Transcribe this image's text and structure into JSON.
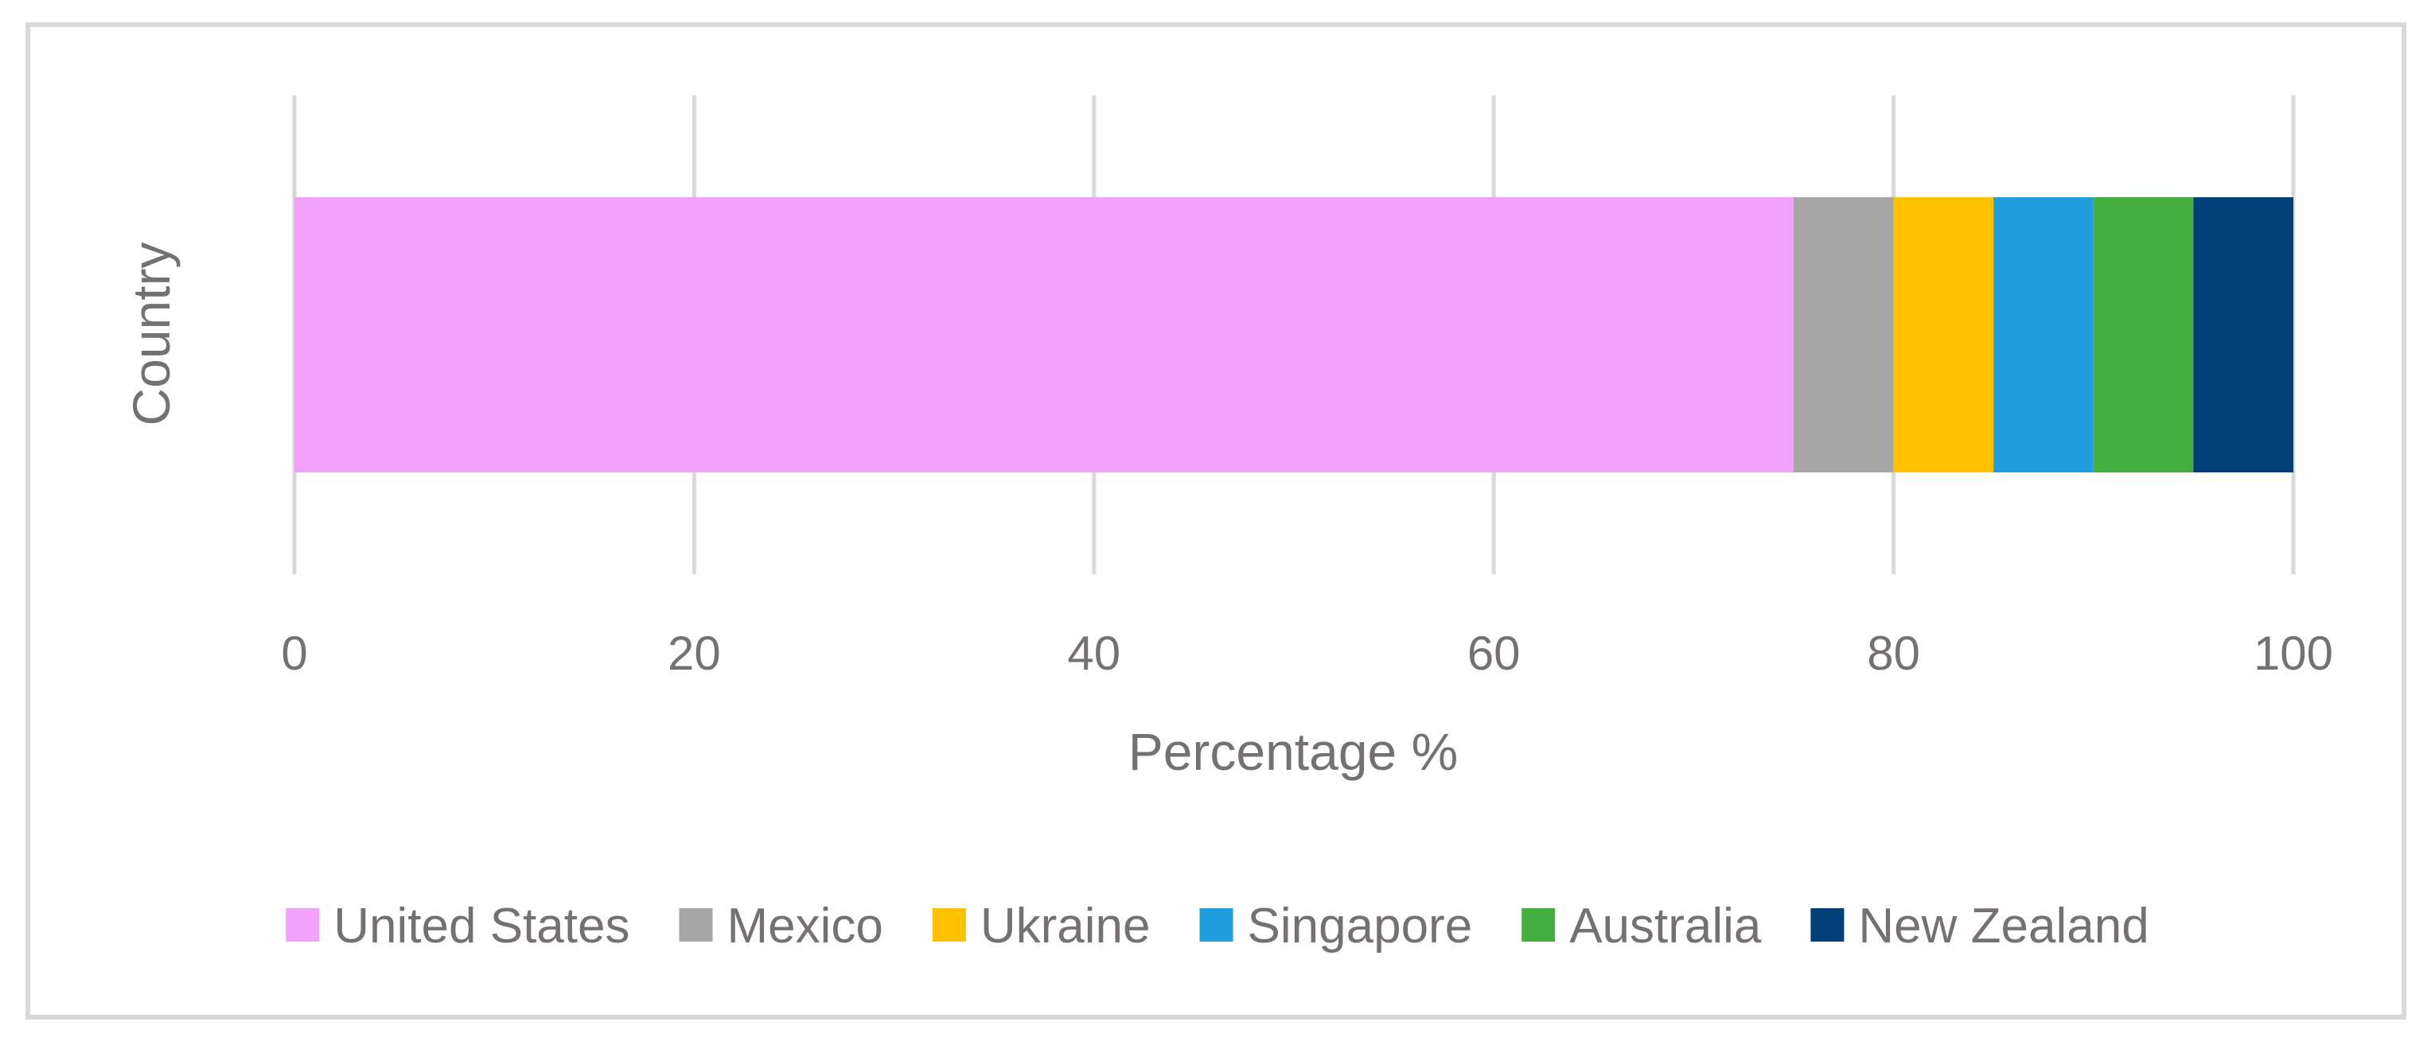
{
  "chart_data": {
    "type": "bar",
    "orientation": "horizontal",
    "stacked": true,
    "title": "",
    "xlabel": "Percentage %",
    "ylabel": "Country",
    "xlim": [
      0,
      100
    ],
    "xticks": [
      "0",
      "20",
      "40",
      "60",
      "80",
      "100"
    ],
    "grid": "vertical major gridlines",
    "legend_position": "bottom",
    "series": [
      {
        "name": "United States",
        "value": 75,
        "color": "#f2a1fb"
      },
      {
        "name": "Mexico",
        "value": 5,
        "color": "#a6a6a6"
      },
      {
        "name": "Ukraine",
        "value": 5,
        "color": "#ffc000"
      },
      {
        "name": "Singapore",
        "value": 5,
        "color": "#1f9ede"
      },
      {
        "name": "Australia",
        "value": 5,
        "color": "#43ae3d"
      },
      {
        "name": "New Zealand",
        "value": 5,
        "color": "#003f78"
      }
    ],
    "colors": {
      "text": "#767171",
      "grid": "#d9d9d9",
      "frame": "#d9d9d9"
    }
  }
}
